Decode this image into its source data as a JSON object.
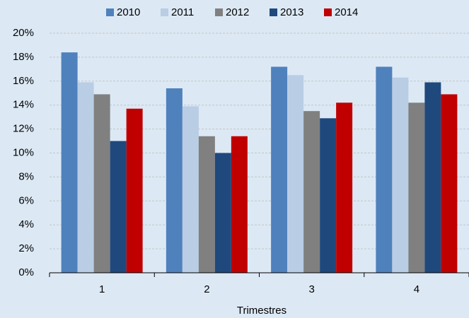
{
  "chart_data": {
    "type": "bar",
    "x_label": "Trimestres",
    "categories": [
      "1",
      "2",
      "3",
      "4"
    ],
    "series": [
      {
        "name": "2010",
        "color": "#4f81bd",
        "values": [
          18.4,
          15.4,
          17.2,
          17.2
        ]
      },
      {
        "name": "2011",
        "color": "#b9cde5",
        "values": [
          15.9,
          13.9,
          16.5,
          16.3
        ]
      },
      {
        "name": "2012",
        "color": "#808080",
        "values": [
          14.9,
          11.4,
          13.5,
          14.2
        ]
      },
      {
        "name": "2013",
        "color": "#1f497d",
        "values": [
          11.0,
          10.0,
          12.9,
          15.9
        ]
      },
      {
        "name": "2014",
        "color": "#c00000",
        "values": [
          13.7,
          11.4,
          14.2,
          14.9
        ]
      }
    ],
    "ylim": [
      0,
      20
    ],
    "yticks": [
      {
        "value": 0,
        "label": "0%"
      },
      {
        "value": 2,
        "label": "2%"
      },
      {
        "value": 4,
        "label": "4%"
      },
      {
        "value": 6,
        "label": "6%"
      },
      {
        "value": 8,
        "label": "8%"
      },
      {
        "value": 10,
        "label": "10%"
      },
      {
        "value": 12,
        "label": "12%"
      },
      {
        "value": 14,
        "label": "14%"
      },
      {
        "value": 16,
        "label": "16%"
      },
      {
        "value": 18,
        "label": "18%"
      },
      {
        "value": 20,
        "label": "20%"
      }
    ],
    "grid": true,
    "legend": "top"
  }
}
